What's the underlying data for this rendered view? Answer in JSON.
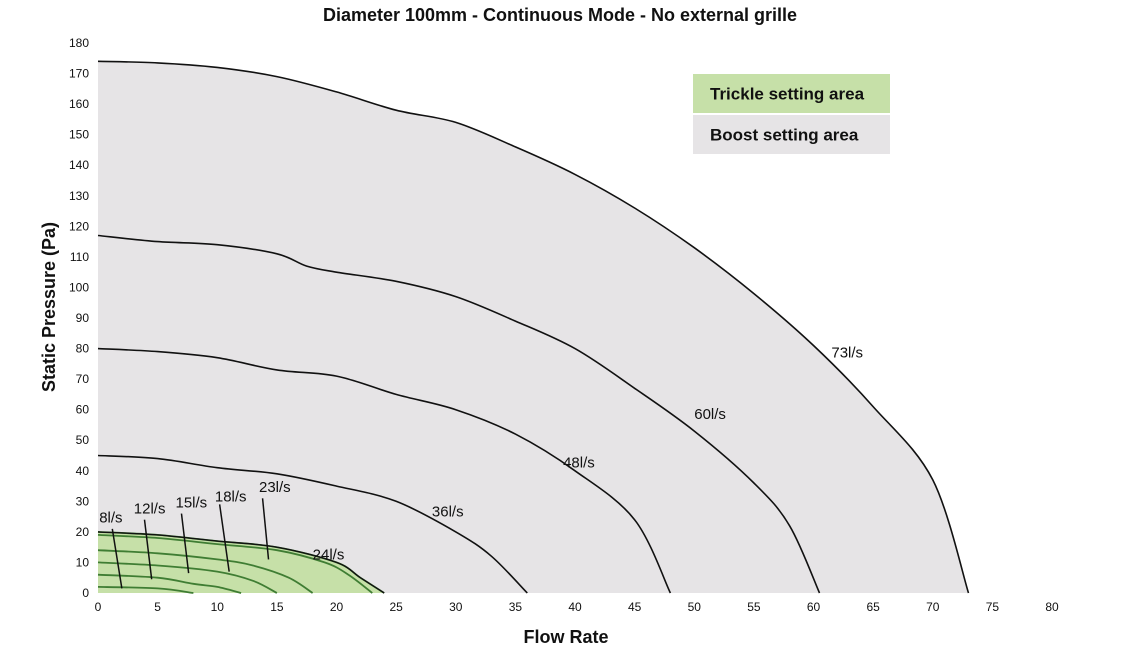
{
  "chart_data": {
    "type": "line",
    "title": "Diameter 100mm - Continuous Mode - No external grille",
    "xlabel": "Flow Rate",
    "ylabel": "Static Pressure (Pa)",
    "xlim": [
      0,
      80
    ],
    "ylim": [
      0,
      180
    ],
    "x_ticks": [
      0,
      5,
      10,
      15,
      20,
      25,
      30,
      35,
      40,
      45,
      50,
      55,
      60,
      65,
      70,
      75,
      80
    ],
    "y_ticks": [
      0,
      10,
      20,
      30,
      40,
      50,
      60,
      70,
      80,
      90,
      100,
      110,
      120,
      130,
      140,
      150,
      160,
      170,
      180
    ],
    "grid": false,
    "legend": {
      "position": "top-right",
      "items": [
        {
          "label": "Trickle setting area",
          "color": "#c6e0a8"
        },
        {
          "label": "Boost setting area",
          "color": "#e6e4e6"
        }
      ]
    },
    "colors": {
      "boost_fill": "#e6e4e6",
      "trickle_fill": "#c6e0a8",
      "trickle_line": "#3f7d33",
      "boost_line": "#111111"
    },
    "series": [
      {
        "name": "73l/s",
        "area": "boost",
        "points": [
          [
            0,
            174
          ],
          [
            5,
            173.5
          ],
          [
            10,
            172
          ],
          [
            15,
            169
          ],
          [
            20,
            164
          ],
          [
            25,
            158
          ],
          [
            30,
            154
          ],
          [
            35,
            146
          ],
          [
            40,
            137
          ],
          [
            45,
            126
          ],
          [
            50,
            113
          ],
          [
            55,
            98
          ],
          [
            60,
            81
          ],
          [
            65,
            61
          ],
          [
            70,
            37
          ],
          [
            73,
            0
          ]
        ]
      },
      {
        "name": "60l/s",
        "area": "boost",
        "points": [
          [
            0,
            117
          ],
          [
            5,
            115
          ],
          [
            10,
            114
          ],
          [
            15,
            111
          ],
          [
            17.5,
            107
          ],
          [
            20,
            105
          ],
          [
            25,
            102
          ],
          [
            30,
            97
          ],
          [
            35,
            89
          ],
          [
            40,
            80
          ],
          [
            45,
            67
          ],
          [
            50,
            53
          ],
          [
            55,
            36
          ],
          [
            58,
            22
          ],
          [
            60.5,
            0
          ]
        ]
      },
      {
        "name": "48l/s",
        "area": "boost",
        "points": [
          [
            0,
            80
          ],
          [
            5,
            79
          ],
          [
            10,
            77
          ],
          [
            15,
            73
          ],
          [
            20,
            71
          ],
          [
            25,
            65
          ],
          [
            30,
            60
          ],
          [
            35,
            52
          ],
          [
            40,
            40
          ],
          [
            45,
            24
          ],
          [
            48,
            0
          ]
        ]
      },
      {
        "name": "36l/s",
        "area": "boost",
        "points": [
          [
            0,
            45
          ],
          [
            5,
            44
          ],
          [
            10,
            41
          ],
          [
            15,
            39
          ],
          [
            20,
            35
          ],
          [
            25,
            30
          ],
          [
            30,
            20
          ],
          [
            33,
            12
          ],
          [
            36,
            0
          ]
        ]
      },
      {
        "name": "24l/s",
        "area": "trickle",
        "points": [
          [
            0,
            20
          ],
          [
            5,
            19
          ],
          [
            10,
            17
          ],
          [
            15,
            15
          ],
          [
            20,
            10
          ],
          [
            22,
            5
          ],
          [
            24,
            0
          ]
        ]
      },
      {
        "name": "23l/s",
        "area": "trickle",
        "points": [
          [
            0,
            19
          ],
          [
            5,
            18
          ],
          [
            10,
            16
          ],
          [
            15,
            14
          ],
          [
            19,
            10
          ],
          [
            21,
            6
          ],
          [
            23,
            0
          ]
        ]
      },
      {
        "name": "18l/s",
        "area": "trickle",
        "points": [
          [
            0,
            14
          ],
          [
            5,
            13
          ],
          [
            10,
            11
          ],
          [
            13,
            9
          ],
          [
            16,
            5
          ],
          [
            18,
            0
          ]
        ]
      },
      {
        "name": "15l/s",
        "area": "trickle",
        "points": [
          [
            0,
            10
          ],
          [
            5,
            9
          ],
          [
            10,
            7
          ],
          [
            13,
            4
          ],
          [
            15,
            0
          ]
        ]
      },
      {
        "name": "12l/s",
        "area": "trickle",
        "points": [
          [
            0,
            6
          ],
          [
            5,
            5
          ],
          [
            8,
            3
          ],
          [
            10,
            2
          ],
          [
            12,
            0
          ]
        ]
      },
      {
        "name": "8l/s",
        "area": "trickle",
        "points": [
          [
            0,
            2
          ],
          [
            5,
            1.5
          ],
          [
            8,
            0
          ]
        ]
      }
    ],
    "annotations": [
      {
        "text": "73l/s",
        "x": 61.5,
        "y": 77,
        "leader": null
      },
      {
        "text": "60l/s",
        "x": 50,
        "y": 57,
        "leader": null
      },
      {
        "text": "48l/s",
        "x": 39,
        "y": 41,
        "leader": null
      },
      {
        "text": "36l/s",
        "x": 28,
        "y": 25,
        "leader": null
      },
      {
        "text": "24l/s",
        "x": 18,
        "y": 11,
        "leader": null
      },
      {
        "text": "23l/s",
        "x": 13.5,
        "y": 33,
        "leader": [
          [
            13.8,
            31
          ],
          [
            14.3,
            11
          ]
        ]
      },
      {
        "text": "18l/s",
        "x": 9.8,
        "y": 30,
        "leader": [
          [
            10.2,
            29
          ],
          [
            11,
            7
          ]
        ]
      },
      {
        "text": "15l/s",
        "x": 6.5,
        "y": 28,
        "leader": [
          [
            7,
            26
          ],
          [
            7.6,
            6.5
          ]
        ]
      },
      {
        "text": "12l/s",
        "x": 3,
        "y": 26,
        "leader": [
          [
            3.9,
            24
          ],
          [
            4.5,
            4.5
          ]
        ]
      },
      {
        "text": "8l/s",
        "x": 0.1,
        "y": 23,
        "leader": [
          [
            1.2,
            21
          ],
          [
            2,
            1.5
          ]
        ]
      }
    ]
  }
}
